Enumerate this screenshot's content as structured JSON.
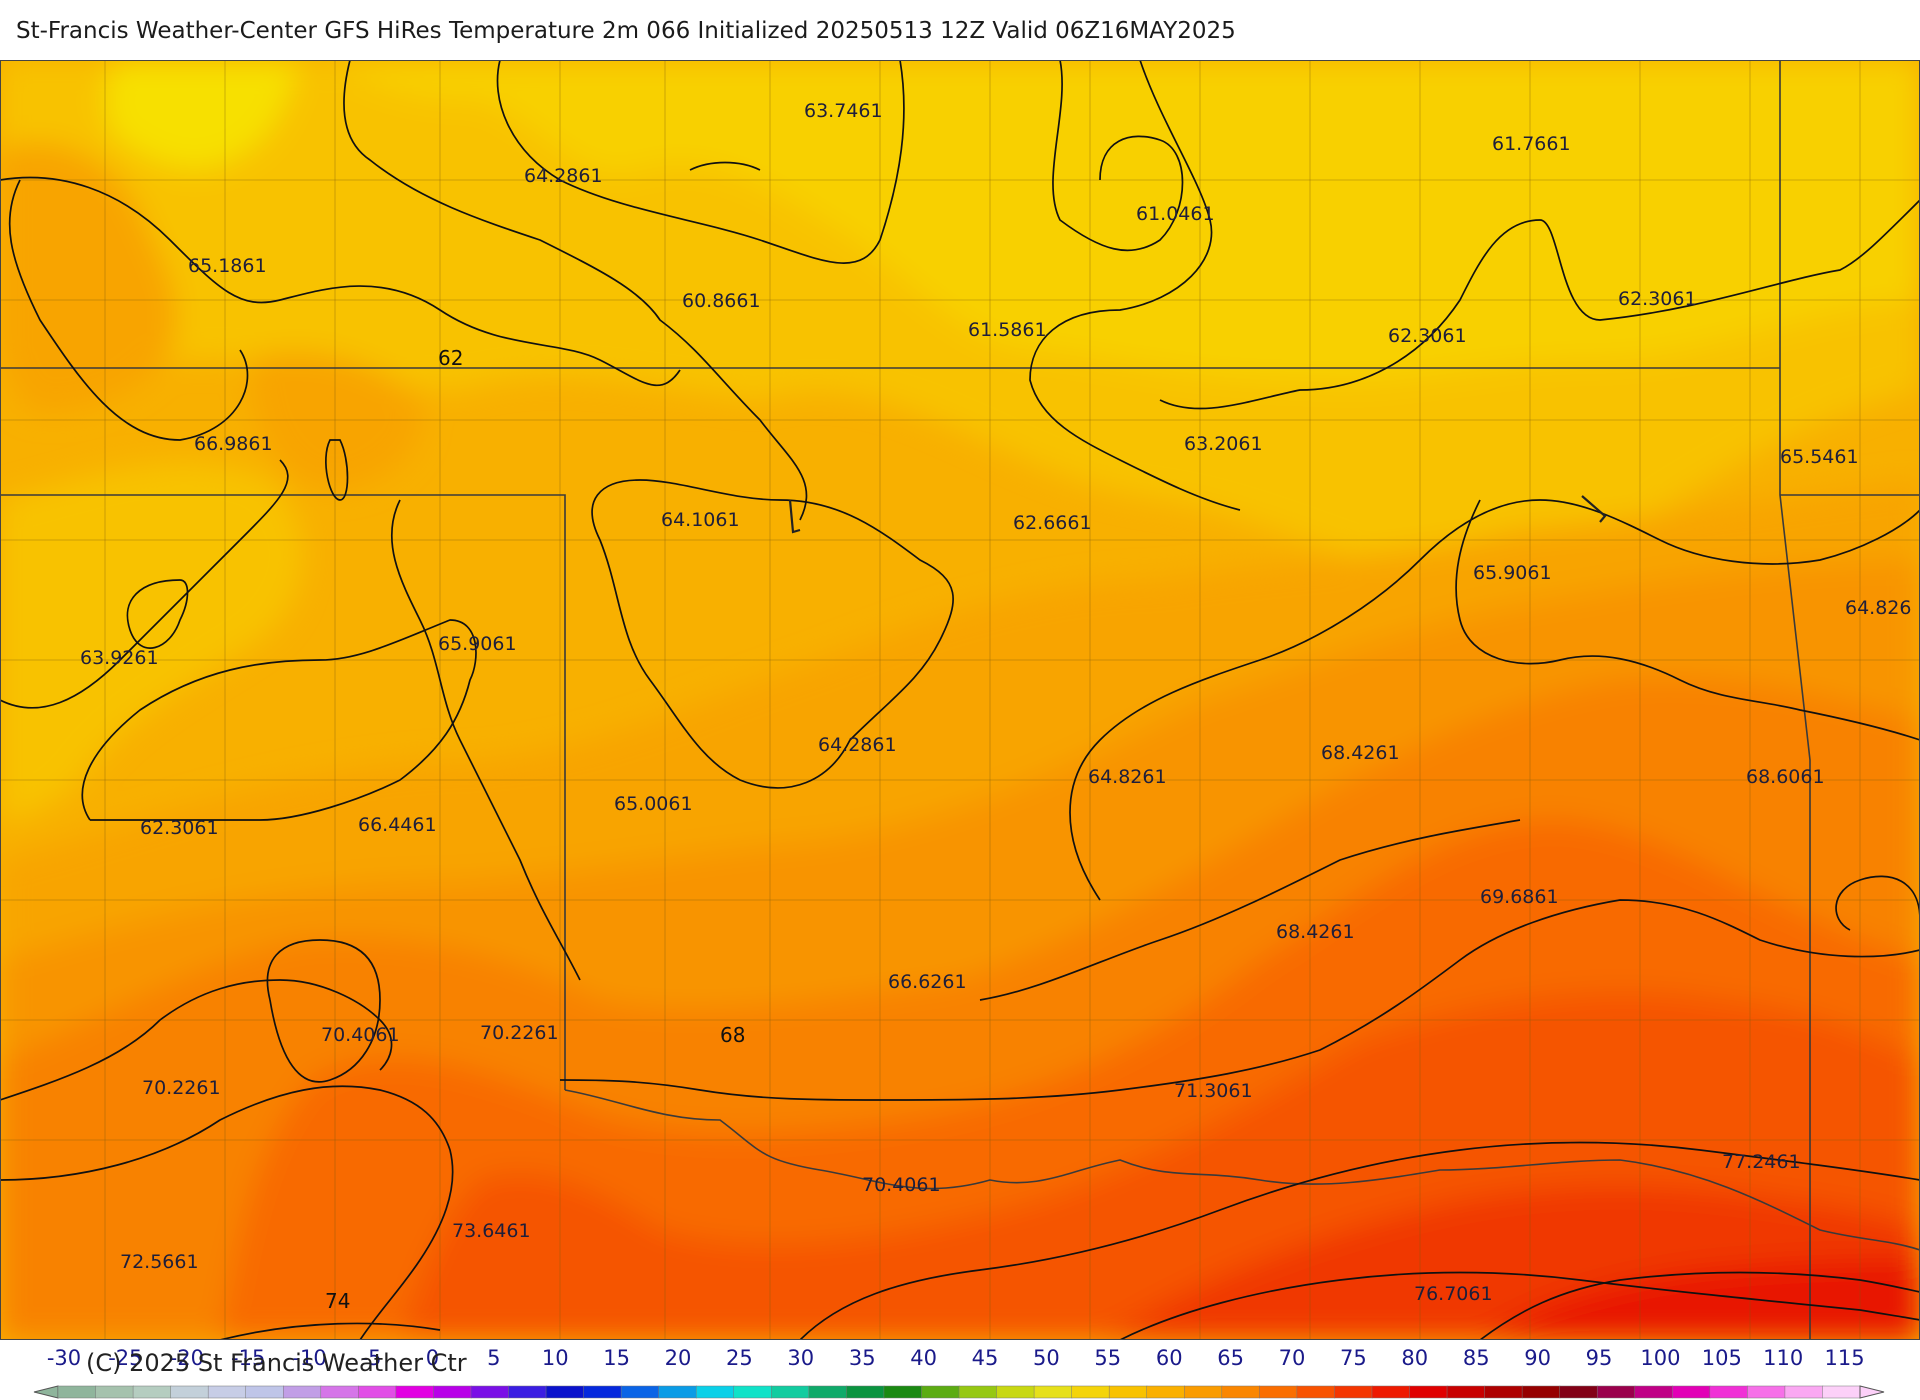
{
  "title": "St-Francis Weather-Center GFS HiRes Temperature 2m  066 Initialized 20250513 12Z Valid 06Z16MAY2025",
  "copyright": "(C) 2025 St Francis Weather Ctr",
  "contour_labels": [
    "62",
    "68",
    "74"
  ],
  "value_labels": [
    "63.7461",
    "64.2861",
    "65.1861",
    "60.8661",
    "61.0461",
    "61.7661",
    "62.3061",
    "61.5861",
    "62.3061",
    "66.9861",
    "63.2061",
    "65.5461",
    "64.1061",
    "62.6661",
    "65.9061",
    "64.826",
    "63.9261",
    "65.9061",
    "64.2861",
    "68.4261",
    "68.6061",
    "62.3061",
    "66.4461",
    "65.0061",
    "64.8261",
    "69.6861",
    "68.4261",
    "66.6261",
    "70.4061",
    "70.2261",
    "68",
    "71.3061",
    "70.2261",
    "70.4061",
    "77.2461",
    "73.6461",
    "72.5661",
    "76.7061"
  ],
  "legend": {
    "ticks": [
      "-30",
      "-25",
      "-20",
      "-15",
      "-10",
      "-5",
      "0",
      "5",
      "10",
      "15",
      "20",
      "25",
      "30",
      "35",
      "40",
      "45",
      "50",
      "55",
      "60",
      "65",
      "70",
      "75",
      "80",
      "85",
      "90",
      "95",
      "100",
      "105",
      "110",
      "115"
    ],
    "colors": [
      "#8fb59c",
      "#a5c2ad",
      "#b5cdc0",
      "#c3d0da",
      "#c7cde6",
      "#bfc5e8",
      "#c19ee6",
      "#d575e8",
      "#e14ee6",
      "#e200e2",
      "#b800e8",
      "#7a10e6",
      "#3a1ee2",
      "#0a12cc",
      "#0528dd",
      "#0a64e6",
      "#0a9ce6",
      "#0ad0e8",
      "#10e2c8",
      "#12cca0",
      "#0faa6a",
      "#0a9440",
      "#1a8a12",
      "#5cac12",
      "#96c812",
      "#c8d812",
      "#e6e01a",
      "#f4d40a",
      "#f8c200",
      "#fab000",
      "#fa9c00",
      "#fa8600",
      "#fa6e00",
      "#f85200",
      "#f43600",
      "#ee1a00",
      "#e00000",
      "#c80000",
      "#ae0000",
      "#960000",
      "#820016",
      "#9a004c",
      "#c00086",
      "#e200b6",
      "#f030d6",
      "#f670e8",
      "#faa8f2",
      "#fcd0f8"
    ]
  },
  "colors": {
    "band_58": "#f7e000",
    "band_60": "#f8d000",
    "band_62": "#f8c200",
    "band_64": "#f8b000",
    "band_66": "#f8a400",
    "band_68": "#f89400",
    "band_70": "#f88200",
    "band_72": "#f86a00",
    "band_74": "#f55400",
    "band_76": "#f03800",
    "band_78": "#e81800"
  }
}
